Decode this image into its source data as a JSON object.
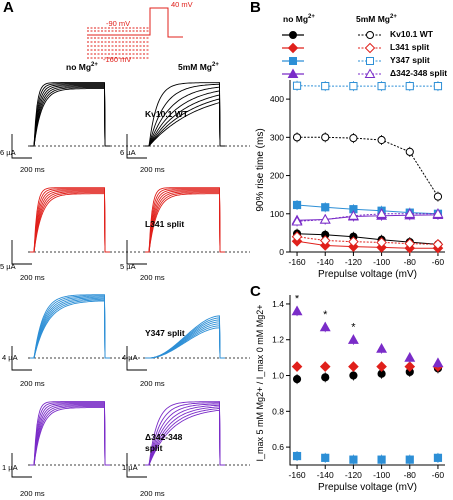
{
  "panels": {
    "A": "A",
    "B": "B",
    "C": "C"
  },
  "protocol": {
    "v40": "40 mV",
    "v90": "-90 mV",
    "v160": "-160 mV"
  },
  "columns": {
    "no_mg": "no Mg",
    "mg": "5mM Mg",
    "sup": "2+"
  },
  "rows": [
    {
      "name": "Kv10.1 WT",
      "color": "#000000",
      "ybar_left": "6 µA",
      "ybar_right": "6 µA"
    },
    {
      "name": "L341 split",
      "color": "#e0201b",
      "ybar_left": "5 µA",
      "ybar_right": "5 µA"
    },
    {
      "name": "Y347 split",
      "color": "#2d8fd6",
      "ybar_left": "4 µA",
      "ybar_right": "4 µA"
    },
    {
      "name": "Δ342-348",
      "name2": "split",
      "color": "#7a2cc8",
      "ybar_left": "1 µA",
      "ybar_right": "1 µA"
    }
  ],
  "time_bar": "200 ms",
  "legend": {
    "col1": "no Mg",
    "col2": "5mM Mg",
    "sup": "2+",
    "items": [
      {
        "name": "Kv10.1 WT",
        "color": "#000000",
        "marker": "circle"
      },
      {
        "name": "L341 split",
        "color": "#e0201b",
        "marker": "diamond"
      },
      {
        "name": "Y347 split",
        "color": "#2d8fd6",
        "marker": "square"
      },
      {
        "name": "Δ342-348 split",
        "color": "#7a2cc8",
        "marker": "triangle"
      }
    ]
  },
  "chart_data": [
    {
      "type": "scatter",
      "panel": "B",
      "xlabel": "Prepulse voltage (mV)",
      "ylabel": "90% rise time (ms)",
      "x": [
        -160,
        -140,
        -120,
        -100,
        -80,
        -60
      ],
      "xlim": [
        -165,
        -55
      ],
      "ylim": [
        0,
        450
      ],
      "yticks": [
        0,
        100,
        200,
        300,
        400
      ],
      "series": [
        {
          "name": "Kv10.1 WT no Mg",
          "color": "#000000",
          "marker": "circle",
          "filled": true,
          "values": [
            48,
            45,
            40,
            32,
            26,
            20
          ]
        },
        {
          "name": "L341 split no Mg",
          "color": "#e0201b",
          "marker": "diamond",
          "filled": true,
          "values": [
            28,
            17,
            14,
            12,
            10,
            10
          ]
        },
        {
          "name": "Y347 split no Mg",
          "color": "#2d8fd6",
          "marker": "square",
          "filled": true,
          "values": [
            123,
            117,
            112,
            108,
            103,
            100
          ]
        },
        {
          "name": "Δ342-348 split no Mg",
          "color": "#7a2cc8",
          "marker": "triangle",
          "filled": true,
          "values": [
            83,
            85,
            93,
            95,
            96,
            97
          ]
        },
        {
          "name": "Kv10.1 WT 5mM Mg",
          "color": "#000000",
          "marker": "circle",
          "filled": false,
          "values": [
            300,
            300,
            298,
            293,
            262,
            145
          ]
        },
        {
          "name": "L341 split 5mM Mg",
          "color": "#e0201b",
          "marker": "diamond",
          "filled": false,
          "values": [
            40,
            30,
            27,
            25,
            22,
            20
          ]
        },
        {
          "name": "Y347 split 5mM Mg",
          "color": "#2d8fd6",
          "marker": "square",
          "filled": false,
          "values": [
            435,
            434,
            434,
            434,
            434,
            434
          ]
        },
        {
          "name": "Δ342-348 split 5mM Mg",
          "color": "#7a2cc8",
          "marker": "triangle",
          "filled": false,
          "values": [
            80,
            85,
            95,
            100,
            100,
            100
          ]
        }
      ]
    },
    {
      "type": "scatter",
      "panel": "C",
      "xlabel": "Prepulse voltage (mV)",
      "ylabel": "I_max 5 mM Mg2+ / I_max 0 mM Mg2+",
      "x": [
        -160,
        -140,
        -120,
        -100,
        -80,
        -60
      ],
      "xlim": [
        -165,
        -55
      ],
      "ylim": [
        0.5,
        1.45
      ],
      "yticks": [
        0.6,
        0.8,
        1.0,
        1.2,
        1.4
      ],
      "series": [
        {
          "name": "Kv10.1 WT",
          "color": "#000000",
          "marker": "circle",
          "values": [
            0.98,
            0.99,
            1.0,
            1.01,
            1.02,
            1.04
          ]
        },
        {
          "name": "L341 split",
          "color": "#e0201b",
          "marker": "diamond",
          "values": [
            1.05,
            1.05,
            1.05,
            1.05,
            1.05,
            1.05
          ]
        },
        {
          "name": "Y347 split",
          "color": "#2d8fd6",
          "marker": "square",
          "values": [
            0.55,
            0.54,
            0.53,
            0.53,
            0.53,
            0.54
          ]
        },
        {
          "name": "Δ342-348 split",
          "color": "#7a2cc8",
          "marker": "triangle",
          "values": [
            1.36,
            1.27,
            1.2,
            1.15,
            1.1,
            1.07
          ]
        }
      ],
      "annotations": [
        {
          "x": -160,
          "text": "*"
        },
        {
          "x": -140,
          "text": "*"
        },
        {
          "x": -120,
          "text": "*"
        }
      ]
    }
  ]
}
